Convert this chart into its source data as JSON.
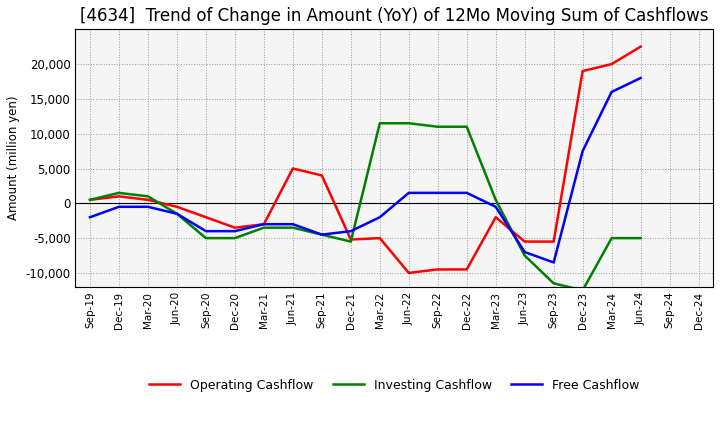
{
  "title": "[4634]  Trend of Change in Amount (YoY) of 12Mo Moving Sum of Cashflows",
  "ylabel": "Amount (million yen)",
  "x_labels": [
    "Sep-19",
    "Dec-19",
    "Mar-20",
    "Jun-20",
    "Sep-20",
    "Dec-20",
    "Mar-21",
    "Jun-21",
    "Sep-21",
    "Dec-21",
    "Mar-22",
    "Jun-22",
    "Sep-22",
    "Dec-22",
    "Mar-23",
    "Jun-23",
    "Sep-23",
    "Dec-23",
    "Mar-24",
    "Jun-24",
    "Sep-24",
    "Dec-24"
  ],
  "operating": [
    500,
    1000,
    500,
    -500,
    -2000,
    -3500,
    -3000,
    5000,
    4000,
    -5200,
    -5000,
    -10000,
    -9500,
    -9500,
    -2000,
    -5500,
    -5500,
    19000,
    20000,
    22500,
    null,
    null
  ],
  "investing": [
    500,
    1500,
    1000,
    -1500,
    -5000,
    -5000,
    -3500,
    -3500,
    -4500,
    -5500,
    11500,
    11500,
    11000,
    11000,
    500,
    -7500,
    -11500,
    -12500,
    -5000,
    -5000,
    null,
    null
  ],
  "free": [
    -2000,
    -500,
    -500,
    -1500,
    -4000,
    -4000,
    -3000,
    -3000,
    -4500,
    -4000,
    -2000,
    1500,
    1500,
    1500,
    -500,
    -7000,
    -8500,
    7500,
    16000,
    18000,
    null,
    null
  ],
  "operating_color": "#ff0000",
  "investing_color": "#008000",
  "free_color": "#0000ff",
  "ylim": [
    -12000,
    25000
  ],
  "yticks": [
    -10000,
    -5000,
    0,
    5000,
    10000,
    15000,
    20000
  ],
  "background_color": "#ffffff",
  "plot_bg_color": "#f5f5f5",
  "grid_color": "#999999",
  "title_fontsize": 12,
  "legend_labels": [
    "Operating Cashflow",
    "Investing Cashflow",
    "Free Cashflow"
  ]
}
